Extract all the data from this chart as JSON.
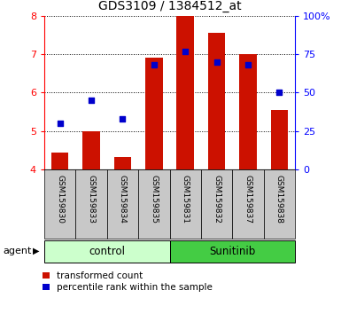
{
  "title": "GDS3109 / 1384512_at",
  "samples": [
    "GSM159830",
    "GSM159833",
    "GSM159834",
    "GSM159835",
    "GSM159831",
    "GSM159832",
    "GSM159837",
    "GSM159838"
  ],
  "red_values": [
    4.45,
    5.0,
    4.33,
    6.9,
    8.0,
    7.55,
    7.0,
    5.55
  ],
  "blue_values_pct": [
    30,
    45,
    33,
    68,
    77,
    70,
    68,
    50
  ],
  "ylim_left": [
    4,
    8
  ],
  "ylim_right": [
    0,
    100
  ],
  "yticks_left": [
    4,
    5,
    6,
    7,
    8
  ],
  "yticks_right": [
    0,
    25,
    50,
    75,
    100
  ],
  "ytick_labels_right": [
    "0",
    "25",
    "50",
    "75",
    "100%"
  ],
  "bar_color": "#cc1100",
  "dot_color": "#0000cc",
  "control_bg": "#ccffcc",
  "sunitinib_bg": "#44cc44",
  "sample_bg": "#c8c8c8",
  "agent_label": "agent",
  "legend_red": "transformed count",
  "legend_blue": "percentile rank within the sample",
  "bar_width": 0.55,
  "dot_size": 25,
  "n_control": 4,
  "n_sunitinib": 4
}
